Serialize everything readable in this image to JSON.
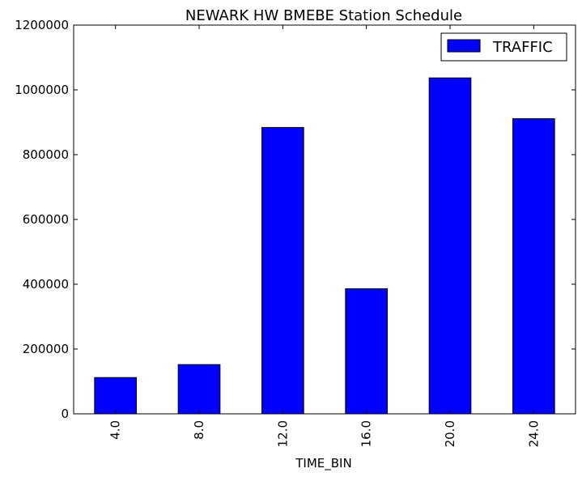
{
  "chart_data": {
    "type": "bar",
    "title": "NEWARK HW BMEBE Station Schedule",
    "xlabel": "TIME_BIN",
    "ylabel": "",
    "categories": [
      "4.0",
      "8.0",
      "12.0",
      "16.0",
      "20.0",
      "24.0"
    ],
    "series": [
      {
        "name": "TRAFFIC",
        "color": "#0000ff",
        "values": [
          112000,
          152000,
          884000,
          386000,
          1037000,
          911000
        ]
      }
    ],
    "ylim": [
      0,
      1200000
    ],
    "yticks": [
      "0",
      "200000",
      "400000",
      "600000",
      "800000",
      "1000000",
      "1200000"
    ],
    "grid": false,
    "legend": "top-right"
  }
}
